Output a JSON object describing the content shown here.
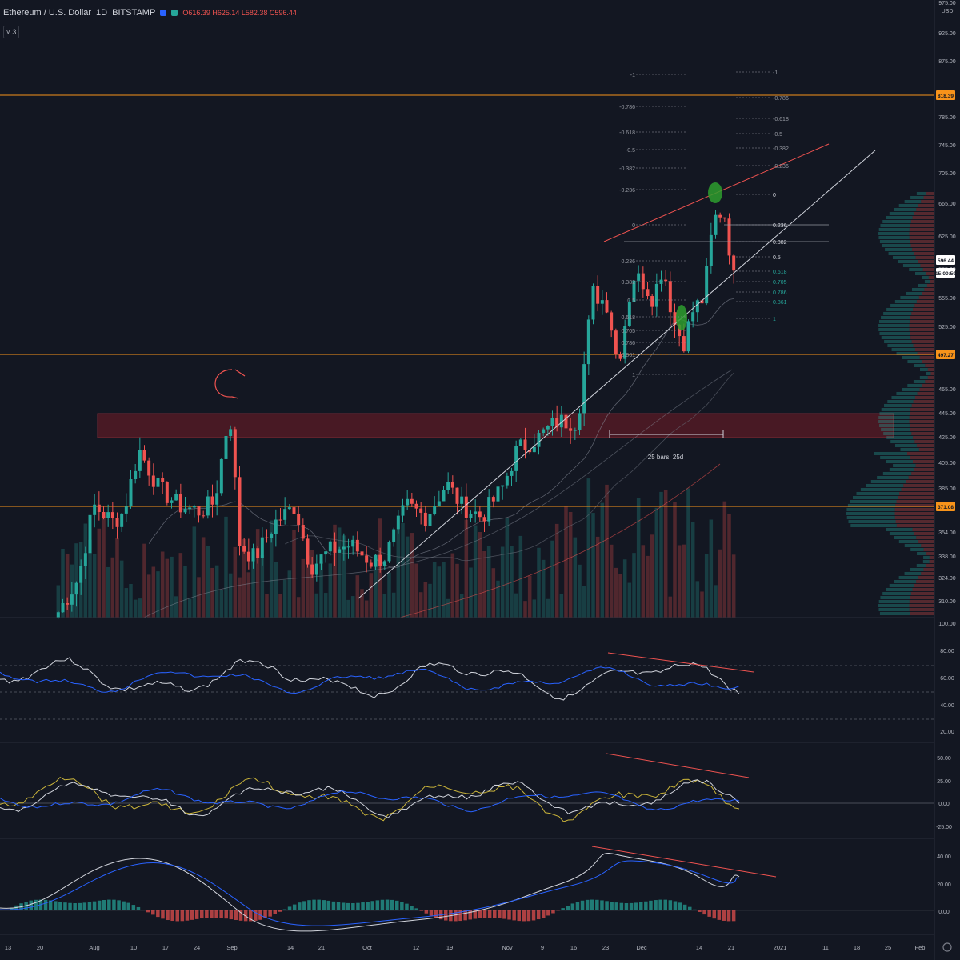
{
  "header": {
    "symbol": "Ethereum / U.S. Dollar",
    "interval": "1D",
    "exchange": "BITSTAMP",
    "ohlc": "O616.39 H625.14 L582.38 C596.44",
    "indicators_count": "3"
  },
  "colors": {
    "bg": "#131722",
    "up": "#26a69a",
    "down": "#ef5350",
    "grid": "#2a2e39",
    "orange": "#f7931a",
    "white": "#d1d4dc",
    "blue": "#2962ff",
    "yellow": "#c9b33a",
    "zone": "#5b1b26"
  },
  "price_axis": {
    "usd_label": "USD",
    "top_label": "975.00",
    "ticks": [
      "925.00",
      "875.00",
      "785.00",
      "745.00",
      "705.00",
      "665.00",
      "625.00",
      "585.00",
      "555.00",
      "525.00",
      "465.00",
      "445.00",
      "425.00",
      "405.00",
      "385.00",
      "354.00",
      "338.00",
      "324.00",
      "310.00"
    ],
    "badges": [
      {
        "value": "818.39",
        "price": 818.39,
        "color": "#f7931a"
      },
      {
        "value": "497.27",
        "price": 497.27,
        "color": "#f7931a"
      },
      {
        "value": "371.08",
        "price": 371.08,
        "color": "#f7931a"
      },
      {
        "value": "596.44",
        "price": 596.44,
        "color": "#ffffff"
      },
      {
        "value": "15:00:59",
        "price": 585.5,
        "color": "#ffffff"
      }
    ]
  },
  "time_axis": [
    "13",
    "20",
    "Aug",
    "10",
    "17",
    "24",
    "Sep",
    "14",
    "21",
    "Oct",
    "12",
    "19",
    "Nov",
    "9",
    "16",
    "23",
    "Dec",
    "14",
    "21",
    "2021",
    "11",
    "18",
    "25",
    "Feb"
  ],
  "annotations": {
    "range_label": "25 bars, 25d",
    "fib_left": [
      "-1",
      "-0.786",
      "-0.618",
      "-0.5",
      "-0.382",
      "-0.236",
      "0",
      "0.236",
      "0.382",
      "0.5",
      "0.618",
      "0.705",
      "0.786",
      "0.861",
      "1"
    ],
    "fib_right": [
      "-1",
      "-0.786",
      "-0.618",
      "-0.5",
      "-0.382",
      "-0.236",
      "0",
      "0.236",
      "0.382",
      "0.5",
      "0.618",
      "0.705",
      "0.786",
      "0.861",
      "1"
    ]
  },
  "panes": {
    "rsi_ticks": [
      "100.00",
      "80.00",
      "60.00",
      "40.00",
      "20.00"
    ],
    "osc_ticks": [
      "50.00",
      "25.00",
      "0.00",
      "-25.00"
    ],
    "macd_ticks": [
      "40.00",
      "20.00",
      "0.00"
    ]
  },
  "chart_data": {
    "type": "candlestick",
    "title": "Ethereum / U.S. Dollar",
    "interval": "1D",
    "ylim": [
      300,
      975
    ],
    "x_range": [
      "Jul 13",
      "Feb"
    ],
    "y_scale": "linear",
    "horizontal_levels": [
      818.39,
      497.27,
      371.08
    ],
    "resistance_zone": [
      425,
      452
    ],
    "last_price": 596.44,
    "rsi_levels": [
      70,
      50,
      30
    ],
    "grid": false
  }
}
